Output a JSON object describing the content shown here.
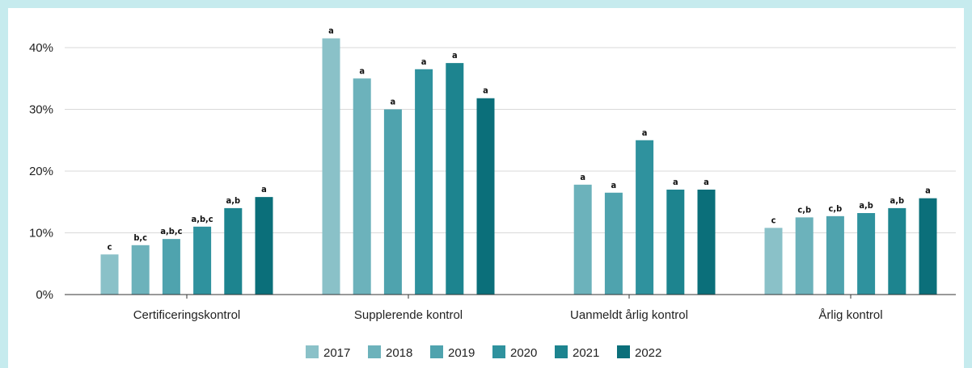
{
  "chart_data": {
    "type": "bar",
    "categories": [
      "Certificeringskontrol",
      "Supplerende kontrol",
      "Uanmeldt årlig kontrol",
      "Årlig kontrol"
    ],
    "series": [
      {
        "name": "2017",
        "color": "#8ac1c8",
        "values": [
          6.5,
          41.5,
          null,
          10.8
        ],
        "labels": [
          "c",
          "a",
          "",
          "c"
        ]
      },
      {
        "name": "2018",
        "color": "#6cb2bb",
        "values": [
          8.0,
          35.0,
          17.8,
          12.5
        ],
        "labels": [
          "b,c",
          "a",
          "a",
          "c,b"
        ]
      },
      {
        "name": "2019",
        "color": "#4fa3ae",
        "values": [
          9.0,
          30.0,
          16.5,
          12.7
        ],
        "labels": [
          "a,b,c",
          "a",
          "a",
          "c,b"
        ]
      },
      {
        "name": "2020",
        "color": "#2f929e",
        "values": [
          11.0,
          36.5,
          25.0,
          13.2
        ],
        "labels": [
          "a,b,c",
          "a",
          "a",
          "a,b"
        ]
      },
      {
        "name": "2021",
        "color": "#1d848f",
        "values": [
          14.0,
          37.5,
          17.0,
          14.0
        ],
        "labels": [
          "a,b",
          "a",
          "a",
          "a,b"
        ]
      },
      {
        "name": "2022",
        "color": "#0b6f7a",
        "values": [
          15.8,
          31.8,
          17.0,
          15.6
        ],
        "labels": [
          "a",
          "a",
          "a",
          "a"
        ]
      }
    ],
    "yticks": [
      "0%",
      "10%",
      "20%",
      "30%",
      "40%"
    ],
    "ytick_values": [
      0,
      10,
      20,
      30,
      40
    ],
    "ylim": [
      0,
      44
    ],
    "grid": true,
    "legend_position": "bottom"
  }
}
